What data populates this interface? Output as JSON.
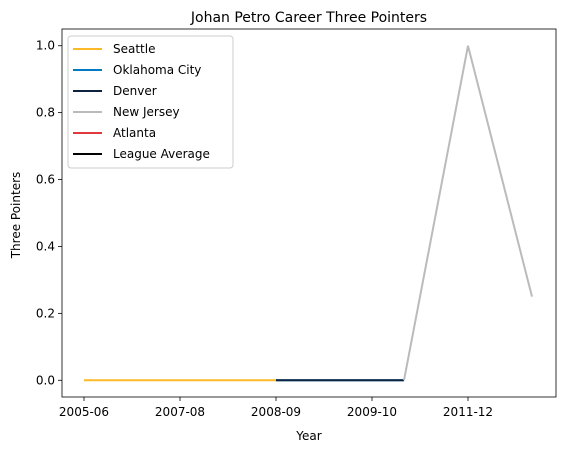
{
  "chart_data": {
    "type": "line",
    "title": "Johan Petro Career Three Pointers",
    "xlabel": "Year",
    "ylabel": "Three Pointers",
    "x_ticks": [
      "2005-06",
      "2007-08",
      "2008-09",
      "2009-10",
      "2011-12"
    ],
    "y_ticks": [
      "0.0",
      "0.2",
      "0.4",
      "0.6",
      "0.8",
      "1.0"
    ],
    "ylim": [
      -0.05,
      1.05
    ],
    "grid": false,
    "legend_position": "top-left",
    "series": [
      {
        "name": "Seattle",
        "color": "#FDB927",
        "points": [
          [
            0,
            0.0
          ],
          [
            3,
            0.0
          ]
        ]
      },
      {
        "name": "Oklahoma City",
        "color": "#007AC1",
        "points": [
          [
            3,
            0.0
          ],
          [
            5,
            0.0
          ]
        ]
      },
      {
        "name": "Denver",
        "color": "#0E2240",
        "points": [
          [
            3,
            0.0
          ],
          [
            5,
            0.0
          ]
        ]
      },
      {
        "name": "New Jersey",
        "color": "#BBBBBB",
        "points": [
          [
            5,
            0.0
          ],
          [
            6,
            1.0
          ],
          [
            7,
            0.25
          ]
        ]
      },
      {
        "name": "Atlanta",
        "color": "#E03A3E",
        "points": []
      },
      {
        "name": "League Average",
        "color": "#000000",
        "points": []
      }
    ]
  }
}
